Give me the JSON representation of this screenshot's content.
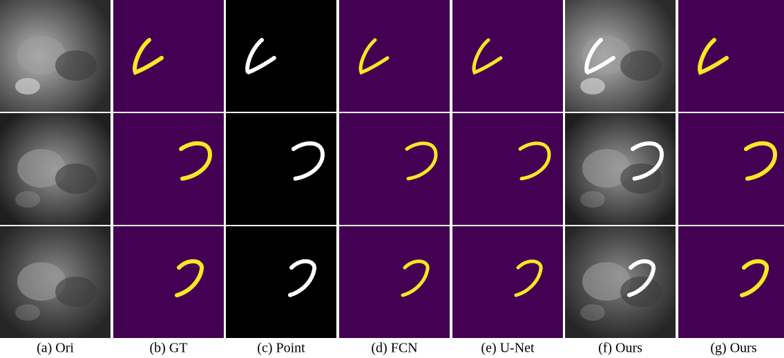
{
  "columns": [
    {
      "caption": "(a) Ori"
    },
    {
      "caption": "(b) GT"
    },
    {
      "caption": "(c) Point"
    },
    {
      "caption": "(d) FCN"
    },
    {
      "caption": "(e) U-Net"
    },
    {
      "caption": "(f) Ours"
    },
    {
      "caption": "(g) Ours"
    }
  ]
}
